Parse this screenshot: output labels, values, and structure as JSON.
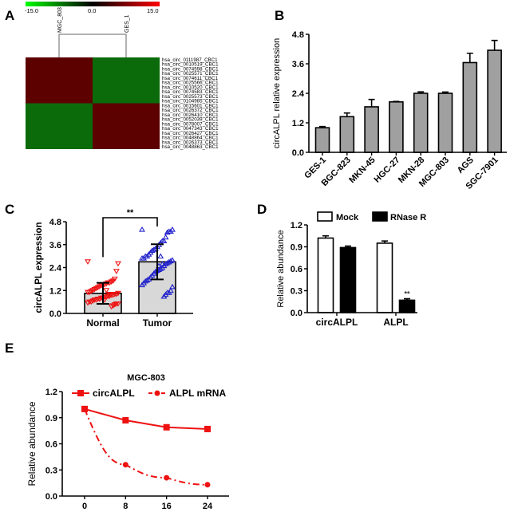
{
  "panels": {
    "a": "A",
    "b": "B",
    "c": "C",
    "d": "D",
    "e": "E"
  },
  "chart_data": [
    {
      "type": "heatmap",
      "panel": "A",
      "colorbar": {
        "min_label": "-15.0",
        "mid_label": "0.0",
        "max_label": "15.0",
        "colors": [
          "#00ff00",
          "#000000",
          "#ff0000"
        ]
      },
      "columns": [
        "MGC_803",
        "GES_1"
      ],
      "rows": [
        "hsa_circ_0111987_CBC1",
        "hsa_circ_0010519_CBC1",
        "hsa_circ_0074598_CBC1",
        "hsa_circ_0025571_CBC1",
        "hsa_circ_0074611_CBC1",
        "hsa_circ_0025566_CBC1",
        "hsa_circ_0010520_CBC1",
        "hsa_circ_0074583_CBC1",
        "hsa_circ_0025573_CBC1",
        "hsa_circ_0104985_CBC1",
        "hsa_circ_0015601_CBC1",
        "hsa_circ_0026372_CBC1",
        "hsa_circ_0026410_CBC1",
        "hsa_circ_0052039_CBC1",
        "hsa_circ_0078007_CBC1",
        "hsa_circ_0047343_CBC1",
        "hsa_circ_0026427_CBC1",
        "hsa_circ_0048864_CBC1",
        "hsa_circ_0026373_CBC1",
        "hsa_circ_0048863_CBC1"
      ],
      "pattern": "rows 1-10 high in MGC_803 / low in GES_1; rows 11-20 low in MGC_803 / high in GES_1",
      "high_color": "#5c0000",
      "low_color": "#0b6b0b"
    },
    {
      "type": "bar",
      "panel": "B",
      "categories": [
        "GES-1",
        "BGC-823",
        "MKN-45",
        "HGC-27",
        "MKN-28",
        "MGC-803",
        "AGS",
        "SGC-7901"
      ],
      "values": [
        1.0,
        1.45,
        1.85,
        2.05,
        2.4,
        2.4,
        3.65,
        4.15
      ],
      "errors": [
        0.05,
        0.15,
        0.3,
        0.02,
        0.06,
        0.05,
        0.38,
        0.4
      ],
      "ylabel": "circALPL relative expression",
      "ylim": [
        0,
        4.8
      ],
      "yticks": [
        "0.0",
        "1.2",
        "2.4",
        "3.6",
        "4.8"
      ],
      "bar_color": "#a0a0a0"
    },
    {
      "type": "scatter",
      "panel": "C",
      "categories": [
        "Normal",
        "Tumor"
      ],
      "means": [
        1.05,
        2.7
      ],
      "sd": [
        0.55,
        0.92
      ],
      "points": [
        [
          2.7,
          2.6,
          2.2,
          1.8,
          1.7,
          1.65,
          1.6,
          1.6,
          1.55,
          1.5,
          1.5,
          1.45,
          1.4,
          1.35,
          1.3,
          1.25,
          1.2,
          1.15,
          1.1,
          1.1,
          1.05,
          1.0,
          1.0,
          0.95,
          0.95,
          0.9,
          0.9,
          0.85,
          0.85,
          0.8,
          0.8,
          0.75,
          0.75,
          0.7,
          0.7,
          0.65,
          0.6,
          0.6,
          0.55,
          0.5,
          0.5,
          0.45,
          0.4,
          0.35,
          1.0,
          0.9,
          1.2,
          0.7
        ],
        [
          4.4,
          4.4,
          4.3,
          4.3,
          4.25,
          4.0,
          3.8,
          3.8,
          3.7,
          3.6,
          3.5,
          3.4,
          3.35,
          3.3,
          3.2,
          3.1,
          3.0,
          3.0,
          2.9,
          2.9,
          2.8,
          2.75,
          2.7,
          2.65,
          2.6,
          2.5,
          2.4,
          2.35,
          2.3,
          2.25,
          2.2,
          2.1,
          2.0,
          1.9,
          1.8,
          1.75,
          1.7,
          1.6,
          1.5,
          1.4,
          1.2,
          1.1,
          1.1,
          1.0,
          0.9,
          2.6,
          3.0,
          2.5
        ]
      ],
      "point_colors": [
        "#ee1111",
        "#2222cc"
      ],
      "significance": "**",
      "ylabel": "circALPL expression",
      "ylim": [
        0,
        4.8
      ],
      "yticks": [
        "0.0",
        "1.2",
        "2.4",
        "3.6",
        "4.8"
      ]
    },
    {
      "type": "bar",
      "panel": "D",
      "categories": [
        "circALPL",
        "ALPL"
      ],
      "series": [
        {
          "name": "Mock",
          "values": [
            1.02,
            0.95
          ],
          "errors": [
            0.03,
            0.03
          ],
          "color": "#ffffff"
        },
        {
          "name": "RNase R",
          "values": [
            0.89,
            0.17
          ],
          "errors": [
            0.02,
            0.02
          ],
          "color": "#000000"
        }
      ],
      "annotation": "**",
      "ylabel": "Relative abundance",
      "ylim": [
        0,
        1.2
      ],
      "yticks": [
        "0.0",
        "0.3",
        "0.6",
        "0.9",
        "1.2"
      ],
      "legend": "top"
    },
    {
      "type": "line",
      "panel": "E",
      "title": "MGC-803",
      "x": [
        0,
        8,
        16,
        24
      ],
      "xticks": [
        "0",
        "8",
        "16",
        "24"
      ],
      "series": [
        {
          "name": "circALPL",
          "values": [
            1.0,
            0.87,
            0.79,
            0.77
          ],
          "style": "solid",
          "marker": "square"
        },
        {
          "name": "ALPL mRNA",
          "values": [
            1.0,
            0.36,
            0.21,
            0.13
          ],
          "style": "dash-dot",
          "marker": "circle"
        }
      ],
      "color": "#ee1111",
      "ylabel": "Relative abundance",
      "ylim": [
        0,
        1.2
      ],
      "yticks": [
        "0.0",
        "0.3",
        "0.6",
        "0.9",
        "1.2"
      ],
      "legend": "top"
    }
  ]
}
